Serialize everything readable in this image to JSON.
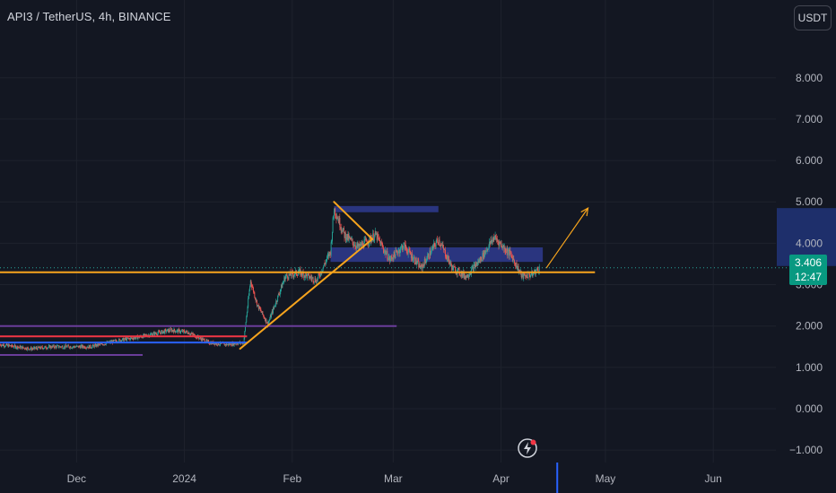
{
  "header": {
    "symbol_title": "API3 / TetherUS, 4h, BINANCE",
    "unit_button": "USDT"
  },
  "price_tag": {
    "price": "3.406",
    "countdown": "12:47"
  },
  "colors": {
    "background": "#131722",
    "grid": "#1e222d",
    "axis_text": "#b2b5be",
    "up_candle": "#26a69a",
    "down_candle": "#ef5350",
    "support_line": "#f7a41d",
    "zone_fill": "#2f3b8f",
    "purple_line": "#6a3d9a",
    "blue_line": "#2962ff",
    "red_line": "#f23645",
    "price_tag": "#089981"
  },
  "icons": [
    "lightning-icon"
  ],
  "chart_data": {
    "type": "candlestick",
    "yaxis": {
      "ticks": [
        "−1.000",
        "0.000",
        "1.000",
        "2.000",
        "3.000",
        "4.000",
        "5.000",
        "6.000",
        "7.000",
        "8.000"
      ],
      "tick_values": [
        -1,
        0,
        1,
        2,
        3,
        4,
        5,
        6,
        7,
        8
      ],
      "range": [
        -1.3,
        9.1
      ]
    },
    "xaxis": {
      "ticks": [
        "Dec",
        "2024",
        "Feb",
        "Mar",
        "Apr",
        "May",
        "Jun"
      ],
      "tick_dates": [
        "2023-12-01",
        "2024-01-01",
        "2024-02-01",
        "2024-03-01",
        "2024-04-01",
        "2024-05-01",
        "2024-06-01"
      ],
      "range": [
        "2023-11-09",
        "2024-06-19"
      ]
    },
    "last_price": 3.406,
    "price_path": [
      [
        "2023-11-09",
        1.55
      ],
      [
        "2023-11-18",
        1.45
      ],
      [
        "2023-11-24",
        1.5
      ],
      [
        "2023-12-05",
        1.5
      ],
      [
        "2023-12-13",
        1.65
      ],
      [
        "2023-12-20",
        1.75
      ],
      [
        "2023-12-28",
        1.9
      ],
      [
        "2024-01-02",
        1.85
      ],
      [
        "2024-01-08",
        1.6
      ],
      [
        "2024-01-13",
        1.55
      ],
      [
        "2024-01-18",
        1.6
      ],
      [
        "2024-01-20",
        3.1
      ],
      [
        "2024-01-22",
        2.5
      ],
      [
        "2024-01-25",
        2.05
      ],
      [
        "2024-01-30",
        3.2
      ],
      [
        "2024-02-03",
        3.3
      ],
      [
        "2024-02-08",
        3.1
      ],
      [
        "2024-02-12",
        3.8
      ],
      [
        "2024-02-13",
        4.85
      ],
      [
        "2024-02-16",
        4.2
      ],
      [
        "2024-02-20",
        3.9
      ],
      [
        "2024-02-25",
        4.2
      ],
      [
        "2024-02-29",
        3.6
      ],
      [
        "2024-03-04",
        3.95
      ],
      [
        "2024-03-09",
        3.4
      ],
      [
        "2024-03-14",
        4.1
      ],
      [
        "2024-03-18",
        3.4
      ],
      [
        "2024-03-22",
        3.2
      ],
      [
        "2024-03-26",
        3.6
      ],
      [
        "2024-03-30",
        4.15
      ],
      [
        "2024-04-04",
        3.7
      ],
      [
        "2024-04-07",
        3.2
      ],
      [
        "2024-04-10",
        3.25
      ],
      [
        "2024-04-12",
        3.406
      ]
    ],
    "drawings": {
      "horizontal_support": {
        "price": 3.3,
        "from": "2023-11-09",
        "to": "2024-04-28"
      },
      "rising_trendline": {
        "from": [
          "2024-01-17",
          1.45
        ],
        "to": [
          "2024-02-24",
          4.1
        ]
      },
      "falling_trendline": {
        "from": [
          "2024-02-13",
          5.0
        ],
        "to": [
          "2024-02-24",
          4.1
        ]
      },
      "projection_arrow": {
        "from": [
          "2024-04-14",
          3.4
        ],
        "to": [
          "2024-04-26",
          4.85
        ]
      },
      "upper_zone": {
        "from": "2024-02-13",
        "to": "2024-03-14",
        "top": 4.9,
        "bottom": 4.75
      },
      "mid_zone": {
        "from": "2024-02-12",
        "to": "2024-04-13",
        "top": 3.9,
        "bottom": 3.55
      },
      "purple_level_1": {
        "price": 2.0,
        "from": "2023-11-09",
        "to": "2024-03-02"
      },
      "purple_level_2": {
        "price": 1.3,
        "from": "2023-11-09",
        "to": "2023-12-20"
      },
      "red_level": {
        "price": 1.75,
        "from": "2023-11-09",
        "to": "2024-01-19"
      },
      "blue_level": {
        "price": 1.6,
        "from": "2023-11-09",
        "to": "2024-01-19"
      },
      "right_axis_zone": {
        "top": 4.85,
        "bottom": 3.45
      }
    }
  }
}
